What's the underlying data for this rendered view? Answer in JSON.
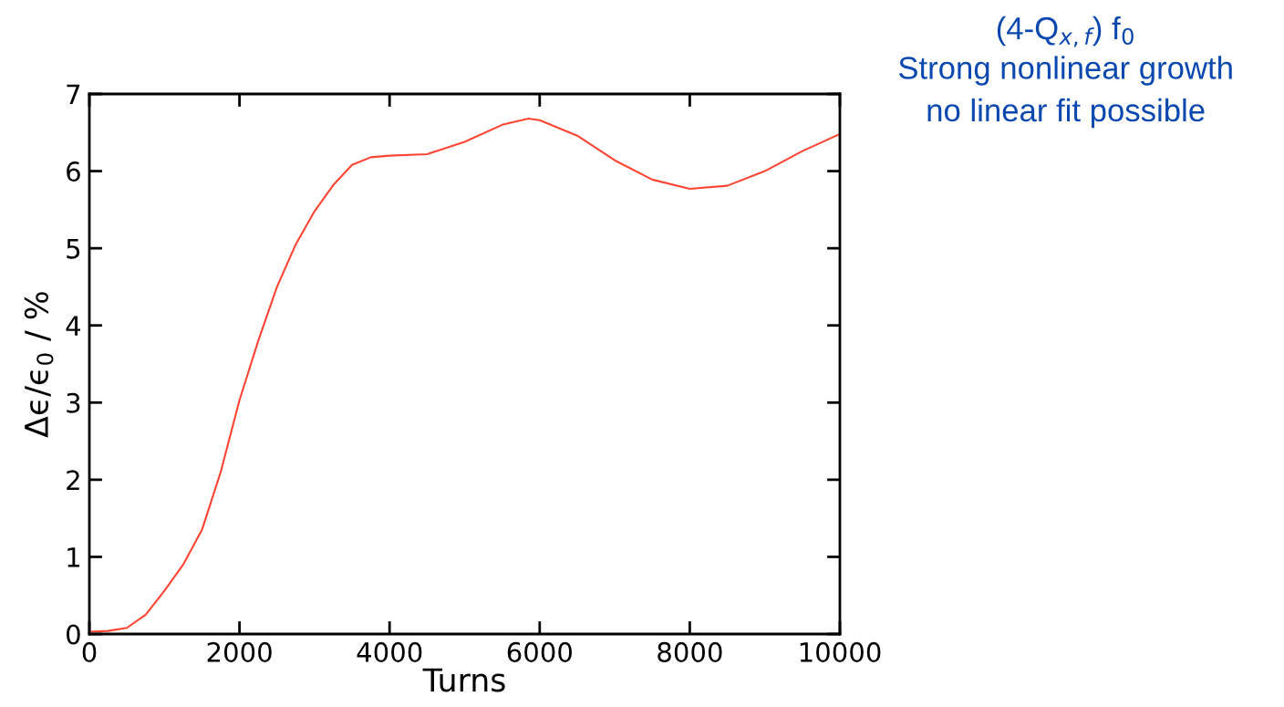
{
  "chart_data": {
    "type": "line",
    "xlabel": "Turns",
    "ylabel": "Δϵ/ϵ$_{0}$ / %",
    "annotations": [
      "(4-Q$_{x,f}$) f$_{0}$",
      "Strong nonlinear growth",
      "no linear fit possible"
    ],
    "series": [
      {
        "color": "#ff4433",
        "x": [
          0,
          250,
          500,
          750,
          1000,
          1250,
          1500,
          1750,
          2000,
          2250,
          2500,
          2750,
          3000,
          3250,
          3500,
          3750,
          4000,
          4500,
          5000,
          5500,
          5850,
          6000,
          6500,
          7000,
          7500,
          8000,
          8500,
          9000,
          9500,
          10000,
          10000
        ],
        "values": [
          0.03,
          0.04,
          0.08,
          0.25,
          0.56,
          0.9,
          1.35,
          2.1,
          3.03,
          3.8,
          4.5,
          5.05,
          5.48,
          5.82,
          6.08,
          6.18,
          6.2,
          6.22,
          6.38,
          6.6,
          6.68,
          6.66,
          6.46,
          6.14,
          5.89,
          5.77,
          5.81,
          6.0,
          6.26,
          6.48,
          6.3
        ]
      }
    ],
    "xlim": [
      0,
      10000
    ],
    "ylim": [
      0,
      7
    ],
    "xticks": [
      0,
      2000,
      4000,
      6000,
      8000,
      10000
    ],
    "yticks": [
      0,
      1,
      2,
      3,
      4,
      5,
      6,
      7
    ],
    "marker": "none",
    "line_style": "solid"
  }
}
